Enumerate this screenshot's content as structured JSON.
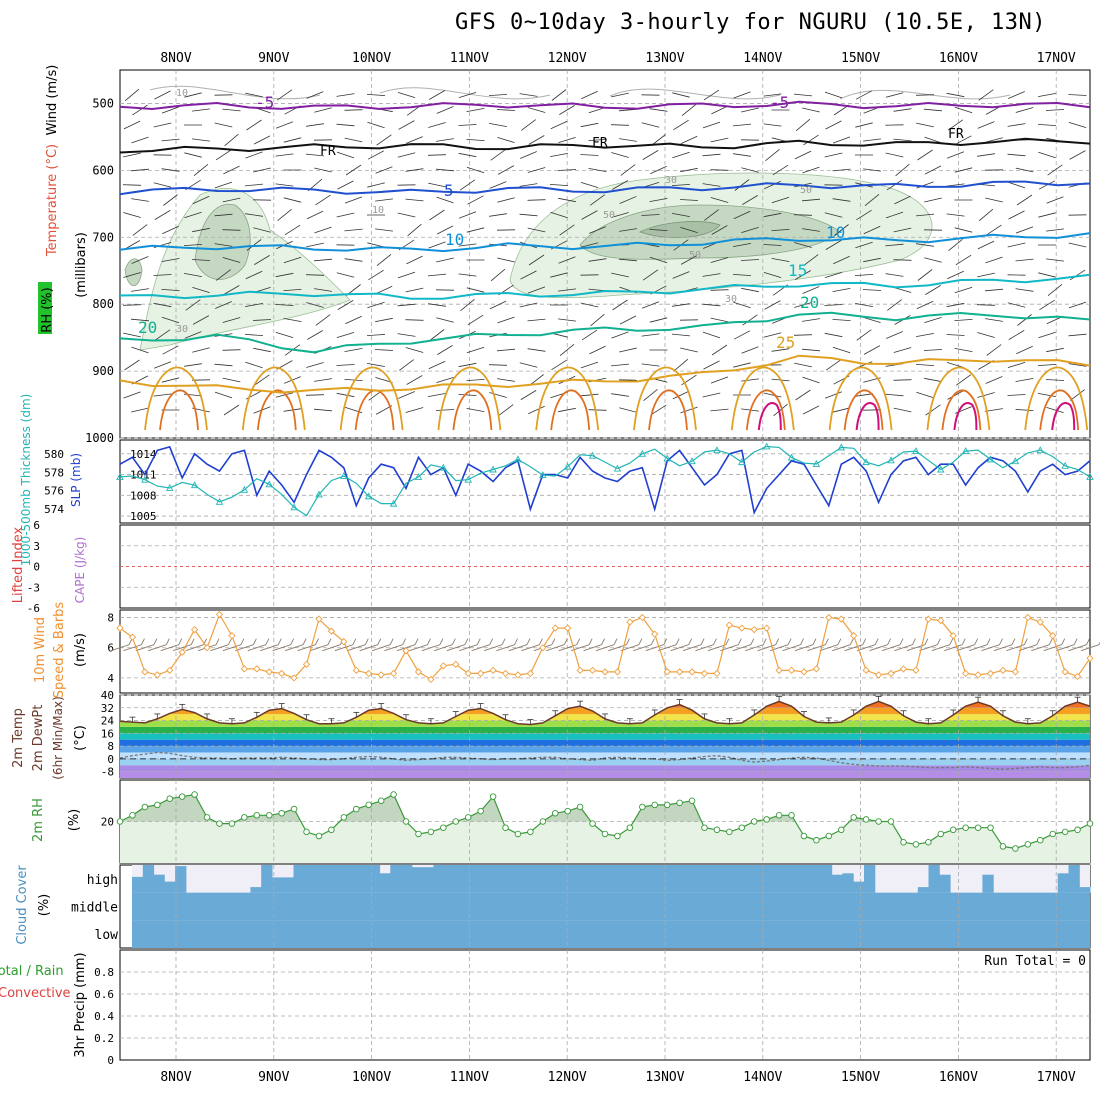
{
  "title": "GFS 0~10day 3-hourly for NGURU (10.5E, 13N)",
  "days": [
    "8NOV",
    "9NOV",
    "10NOV",
    "11NOV",
    "12NOV",
    "13NOV",
    "14NOV",
    "15NOV",
    "16NOV",
    "17NOV"
  ],
  "colors": {
    "grid": "#aaaaaa",
    "slp": "#1f3fd0",
    "thick": "#22b5b5",
    "wind": "#f0a040",
    "temp": "#6b3a2a",
    "dew": "#777777",
    "rh": "#3a9a3a",
    "cloud": "#6aaad6",
    "cape_line": "#e06060"
  },
  "chart_data": [
    {
      "type": "contour",
      "title": "Temperature / Wind / RH profile",
      "ylabel": "(millibars)",
      "side_labels": [
        "Temperature (°C)",
        "Wind (m/s)",
        "RH (%)"
      ],
      "yticks": [
        500,
        600,
        700,
        800,
        900,
        1000
      ],
      "ylim": [
        450,
        1000
      ],
      "isotherms": [
        {
          "label": "-5",
          "color": "#8020a0",
          "levels": [
            505,
            503,
            506,
            504,
            502,
            505,
            503,
            501,
            504,
            502,
            503
          ]
        },
        {
          "label": "FR",
          "color": "#111111",
          "levels": [
            570,
            568,
            565,
            563,
            566,
            562,
            565,
            559,
            561,
            557,
            556
          ]
        },
        {
          "label": "5",
          "color": "#2050d0",
          "levels": [
            632,
            628,
            630,
            633,
            628,
            630,
            626,
            622,
            624,
            620,
            618
          ]
        },
        {
          "label": "10",
          "color": "#1090d8",
          "levels": [
            718,
            714,
            716,
            719,
            713,
            714,
            708,
            702,
            705,
            700,
            696
          ]
        },
        {
          "label": "15",
          "color": "#10b8c8",
          "levels": [
            790,
            786,
            784,
            790,
            786,
            784,
            778,
            770,
            772,
            765,
            760
          ]
        },
        {
          "label": "20",
          "color": "#10b090",
          "levels": [
            855,
            848,
            870,
            855,
            845,
            838,
            835,
            815,
            820,
            815,
            825
          ]
        },
        {
          "label": "25",
          "color": "#e0a020",
          "levels": [
            915,
            925,
            930,
            925,
            920,
            915,
            905,
            880,
            888,
            882,
            890
          ]
        }
      ],
      "contour_labels": [
        "-5",
        "-5",
        "FR",
        "FR",
        "FR",
        "5",
        "10",
        "10",
        "15",
        "20",
        "20",
        "25",
        "10",
        "10",
        "30",
        "50",
        "50",
        "50",
        "30",
        "30"
      ]
    },
    {
      "type": "line",
      "title": "SLP and Thickness",
      "left_label": "1000-500mb Thickness (dm)",
      "right_label": "SLP (mb)",
      "thick_ticks": [
        574,
        576,
        578,
        580
      ],
      "slp_ticks": [
        1005,
        1008,
        1011,
        1014
      ],
      "series": [
        {
          "name": "SLP",
          "unit": "mb",
          "values": [
            1012.5,
            1013.5,
            1011.0,
            1014.5,
            1015.0,
            1010.5,
            1014.0,
            1012.5,
            1011.5,
            1014.0,
            1014.5,
            1008.0,
            1011.5,
            1009.5,
            1007.0,
            1011.0,
            1014.5,
            1013.5,
            1012.0,
            1006.5,
            1010.5,
            1012.5,
            1012.0,
            1009.0,
            1013.5,
            1011.0,
            1012.0,
            1008.0,
            1012.5,
            1011.5,
            1010.0,
            1012.0,
            1013.0,
            1006.0,
            1011.0,
            1011.0,
            1010.5,
            1013.5,
            1011.5,
            1010.5,
            1010.0,
            1011.5,
            1012.0,
            1006.0,
            1013.0,
            1014.5,
            1012.0,
            1009.5,
            1011.0,
            1014.0,
            1014.5,
            1005.5,
            1009.0,
            1011.0,
            1013.0,
            1012.5,
            1009.5,
            1006.5,
            1012.5,
            1013.5,
            1011.5,
            1007.0,
            1011.0,
            1013.0,
            1013.5,
            1011.0,
            1012.5,
            1012.5,
            1009.5,
            1012.0,
            1013.5,
            1013.0,
            1011.5,
            1008.5,
            1011.5,
            1012.5,
            1011.0,
            1011.5,
            1013.0
          ]
        },
        {
          "name": "Thickness",
          "unit": "dm",
          "values": [
            577.5,
            577.6,
            577.2,
            576.5,
            576.3,
            576.9,
            576.6,
            575.6,
            574.8,
            575.3,
            576.1,
            577.3,
            576.7,
            575.6,
            574.2,
            573.3,
            575.6,
            577.1,
            577.6,
            576.8,
            575.4,
            574.6,
            574.6,
            576.8,
            577.5,
            578.8,
            578.5,
            577.1,
            577.2,
            577.9,
            578.3,
            578.7,
            579.4,
            578.6,
            577.7,
            577.6,
            578.6,
            579.9,
            579.8,
            579.1,
            578.4,
            579.0,
            580.0,
            580.5,
            579.5,
            578.7,
            579.2,
            580.2,
            580.4,
            580.0,
            579.1,
            580.2,
            580.8,
            580.7,
            579.6,
            579.0,
            578.9,
            579.8,
            580.7,
            580.6,
            579.1,
            578.7,
            579.3,
            580.2,
            580.3,
            579.3,
            578.3,
            579.1,
            580.3,
            580.4,
            579.4,
            578.5,
            579.2,
            580.1,
            580.4,
            579.7,
            578.7,
            578.3,
            577.5
          ]
        }
      ]
    },
    {
      "type": "line",
      "title": "Lifted Index / CAPE",
      "left_label": "Lifted Index",
      "right_label": "CAPE (J/kg)",
      "yticks": [
        6,
        3,
        0,
        -3,
        -6
      ],
      "ylim": [
        -6,
        6
      ],
      "series": [
        {
          "name": "Lifted Index",
          "values": []
        }
      ]
    },
    {
      "type": "line",
      "title": "10m Wind Speed & Barbs",
      "ylabel": "10m Wind Speed & Barbs (m/s)",
      "yticks": [
        4,
        6,
        8
      ],
      "ylim": [
        3,
        8.5
      ],
      "series": [
        {
          "name": "Wind Speed",
          "unit": "m/s",
          "values": [
            7.3,
            6.7,
            4.4,
            4.2,
            4.5,
            5.7,
            7.2,
            6.0,
            8.2,
            6.8,
            4.6,
            4.6,
            4.4,
            4.3,
            4.0,
            4.9,
            7.9,
            7.1,
            6.4,
            4.5,
            4.3,
            4.2,
            4.3,
            5.8,
            4.4,
            3.9,
            4.8,
            4.9,
            4.3,
            4.3,
            4.5,
            4.3,
            4.2,
            4.3,
            6.0,
            7.3,
            7.3,
            4.5,
            4.5,
            4.4,
            4.4,
            7.7,
            8.0,
            6.9,
            4.4,
            4.4,
            4.4,
            4.3,
            4.3,
            7.5,
            7.3,
            7.2,
            7.3,
            4.5,
            4.5,
            4.4,
            4.6,
            8.0,
            7.9,
            6.8,
            4.5,
            4.2,
            4.3,
            4.6,
            4.5,
            7.9,
            7.8,
            6.8,
            4.3,
            4.2,
            4.3,
            4.5,
            4.4,
            8.0,
            7.7,
            6.8,
            4.4,
            4.1,
            5.3
          ]
        }
      ]
    },
    {
      "type": "area",
      "title": "2m Temp / 2m DewPt",
      "ylabel": "2m Temp 2m DewPt (6hr Min/Max) (°C)",
      "yticks": [
        -8,
        0,
        8,
        16,
        24,
        32,
        40
      ],
      "ylim": [
        -12,
        40
      ],
      "series": [
        {
          "name": "2m Temp",
          "unit": "°C",
          "values": [
            23.5,
            23.0,
            22.5,
            25.0,
            28.5,
            31.0,
            29.0,
            25.0,
            22.5,
            22.0,
            22.5,
            26.0,
            30.5,
            31.5,
            28.5,
            24.5,
            22.0,
            22.0,
            22.5,
            26.0,
            30.5,
            31.5,
            28.5,
            24.5,
            22.5,
            22.0,
            22.5,
            26.5,
            30.5,
            31.5,
            28.5,
            24.5,
            22.0,
            21.5,
            22.5,
            27.0,
            31.5,
            33.0,
            30.0,
            25.0,
            22.5,
            22.0,
            22.5,
            27.5,
            32.0,
            34.0,
            30.5,
            25.0,
            22.5,
            22.0,
            22.5,
            27.5,
            33.0,
            36.0,
            33.0,
            26.5,
            23.0,
            22.5,
            23.0,
            27.5,
            33.0,
            36.0,
            33.0,
            27.0,
            23.0,
            22.0,
            22.5,
            27.5,
            33.0,
            35.5,
            33.0,
            27.0,
            23.0,
            22.0,
            22.5,
            27.0,
            33.0,
            35.5,
            33.0
          ]
        },
        {
          "name": "2m DewPt",
          "unit": "°C",
          "values": [
            0.5,
            2.0,
            3.0,
            4.0,
            3.5,
            2.0,
            1.0,
            0.5,
            0.5,
            0.0,
            0.5,
            0.5,
            0.5,
            1.0,
            0.5,
            0.0,
            -0.5,
            -0.5,
            0.0,
            1.0,
            1.5,
            1.0,
            0.0,
            -1.0,
            -0.5,
            0.0,
            1.0,
            1.0,
            0.5,
            0.0,
            -0.5,
            0.0,
            0.0,
            0.5,
            1.0,
            1.0,
            0.0,
            -0.5,
            -1.0,
            0.5,
            1.0,
            0.5,
            0.0,
            0.0,
            -1.0,
            -0.5,
            0.5,
            1.5,
            2.0,
            1.0,
            -1.0,
            -2.0,
            -1.5,
            -0.5,
            0.5,
            1.0,
            0.5,
            -1.0,
            -2.5,
            -3.5,
            -4.0,
            -4.5,
            -4.5,
            -4.5,
            -5.0,
            -5.5,
            -5.5,
            -5.5,
            -5.0,
            -5.5,
            -6.0,
            -6.5,
            -6.0,
            -5.5,
            -5.0,
            -5.5,
            -5.5,
            -5.0,
            -4.0
          ]
        }
      ]
    },
    {
      "type": "area",
      "title": "2m RH",
      "ylabel": "2m RH (%)",
      "yticks": [
        20
      ],
      "ylim": [
        0,
        40
      ],
      "series": [
        {
          "name": "2m RH",
          "unit": "%",
          "values": [
            20,
            23,
            27,
            28,
            31,
            32,
            33,
            22,
            19,
            19,
            22,
            23,
            23,
            24,
            26,
            15,
            13,
            16,
            22,
            26,
            28,
            30,
            33,
            20,
            14,
            15,
            17,
            20,
            22,
            25,
            32,
            17,
            14,
            15,
            20,
            24,
            25,
            27,
            19,
            14,
            13,
            17,
            27,
            28,
            28,
            29,
            30,
            17,
            16,
            15,
            17,
            20,
            21,
            23,
            23,
            13,
            11,
            13,
            16,
            22,
            21,
            20,
            20,
            10,
            9,
            10,
            14,
            16,
            17,
            17,
            17,
            8,
            7,
            9,
            11,
            14,
            15,
            16,
            19
          ]
        }
      ]
    },
    {
      "type": "bar",
      "title": "Cloud Cover",
      "ylabel": "Cloud Cover (%)",
      "levels": [
        "high",
        "middle",
        "low"
      ],
      "series": [
        {
          "name": "high",
          "unit": "%",
          "values": [
            57,
            100,
            65,
            40,
            96,
            0,
            0,
            0,
            0,
            0,
            0,
            20,
            100,
            55,
            55,
            100,
            100,
            100,
            100,
            100,
            100,
            100,
            100,
            70,
            100,
            100,
            92,
            92,
            100,
            100,
            100,
            100,
            100,
            100,
            100,
            100,
            100,
            100,
            100,
            100,
            100,
            100,
            100,
            100,
            100,
            100,
            100,
            100,
            100,
            100,
            100,
            100,
            100,
            100,
            100,
            100,
            100,
            100,
            100,
            100,
            100,
            100,
            100,
            100,
            100,
            65,
            70,
            40,
            100,
            0,
            0,
            0,
            0,
            20,
            100,
            65,
            0,
            0,
            0,
            65,
            0,
            0,
            0,
            0,
            0,
            0,
            70,
            100,
            20
          ]
        },
        {
          "name": "middle",
          "unit": "%",
          "values": [
            100
          ]
        },
        {
          "name": "low",
          "unit": "%",
          "values": [
            100
          ]
        }
      ]
    },
    {
      "type": "bar",
      "title": "3hr Precip",
      "ylabel": "3hr Precip (mm)",
      "side_labels": [
        "Total / Rain",
        "Convective"
      ],
      "yticks": [
        0,
        0.2,
        0.4,
        0.6,
        0.8
      ],
      "ylim": [
        0,
        1
      ],
      "annotation": "Run Total = 0",
      "series": [
        {
          "name": "Precip",
          "unit": "mm",
          "values": []
        }
      ]
    }
  ]
}
